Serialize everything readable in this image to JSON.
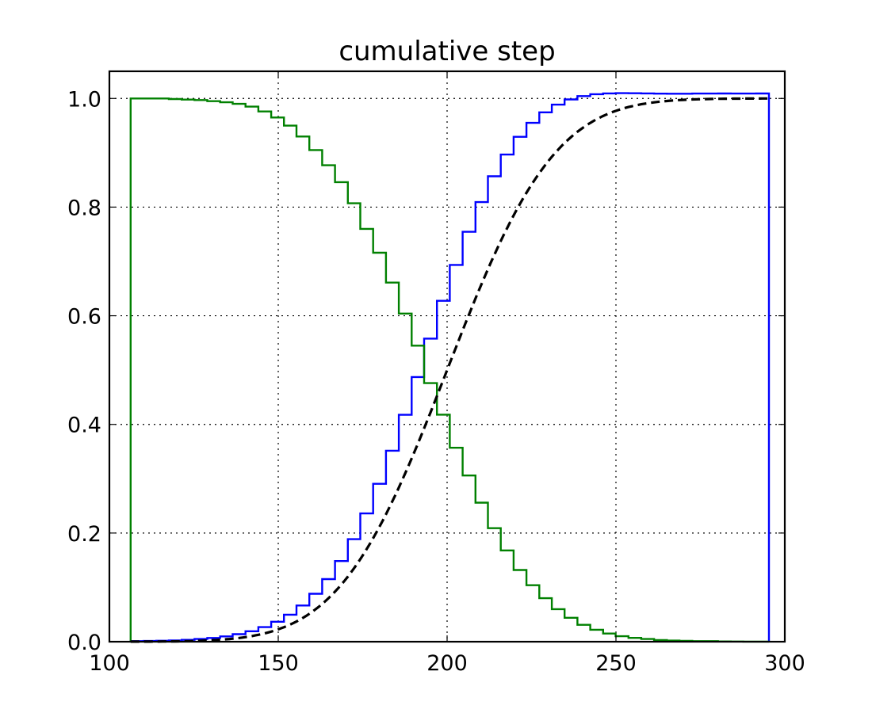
{
  "chart_data": {
    "type": "line",
    "title": "cumulative step",
    "xlabel": "",
    "ylabel": "",
    "xlim": [
      100,
      300
    ],
    "ylim": [
      0.0,
      1.05
    ],
    "xticks": [
      100,
      150,
      200,
      250,
      300
    ],
    "xtick_labels": [
      "100",
      "150",
      "200",
      "250",
      "300"
    ],
    "yticks": [
      0.0,
      0.2,
      0.4,
      0.6,
      0.8,
      1.0
    ],
    "ytick_labels": [
      "0.0",
      "0.2",
      "0.4",
      "0.6",
      "0.8",
      "1.0"
    ],
    "grid": true,
    "legend": "none",
    "series": [
      {
        "style": "step",
        "color": "#0000ff",
        "bin_edges": [
          106.3,
          110.1,
          113.9,
          117.6,
          121.4,
          125.2,
          129.0,
          132.8,
          136.5,
          140.3,
          144.1,
          147.9,
          151.7,
          155.4,
          159.2,
          163.0,
          166.8,
          170.6,
          174.3,
          178.1,
          181.9,
          185.7,
          189.5,
          193.2,
          197.0,
          200.8,
          204.6,
          208.4,
          212.1,
          215.9,
          219.7,
          223.5,
          227.3,
          231.0,
          234.8,
          238.6,
          242.4,
          246.2,
          249.9,
          253.7,
          257.5,
          261.3,
          265.1,
          268.8,
          272.6,
          276.4,
          280.2,
          284.0,
          287.7,
          291.5,
          295.3
        ],
        "values": [
          0.001,
          0.0013,
          0.0017,
          0.0024,
          0.0034,
          0.0049,
          0.0069,
          0.0098,
          0.0138,
          0.0193,
          0.0268,
          0.0367,
          0.0497,
          0.0667,
          0.0882,
          0.1152,
          0.1485,
          0.1887,
          0.2361,
          0.2906,
          0.3516,
          0.4177,
          0.4873,
          0.558,
          0.6275,
          0.6936,
          0.7546,
          0.8093,
          0.8568,
          0.8968,
          0.9294,
          0.955,
          0.9745,
          0.9886,
          0.9982,
          1.0043,
          1.0078,
          1.0093,
          1.0097,
          1.0096,
          1.0093,
          1.0089,
          1.0087,
          1.0088,
          1.009,
          1.009,
          1.0091,
          1.009,
          1.009,
          1.0091
        ]
      },
      {
        "style": "step",
        "color": "#008000",
        "bin_edges": [
          106.3,
          110.1,
          113.9,
          117.6,
          121.4,
          125.2,
          129.0,
          132.8,
          136.5,
          140.3,
          144.1,
          147.9,
          151.7,
          155.4,
          159.2,
          163.0,
          166.8,
          170.6,
          174.3,
          178.1,
          181.9,
          185.7,
          189.5,
          193.2,
          197.0,
          200.8,
          204.6,
          208.4,
          212.1,
          215.9,
          219.7,
          223.5,
          227.3,
          231.0,
          234.8,
          238.6,
          242.4,
          246.2,
          249.9,
          253.7,
          257.5,
          261.3,
          265.1,
          268.8,
          272.6,
          276.4,
          280.2,
          284.0,
          287.7,
          291.5,
          295.3
        ],
        "values": [
          1.0,
          1.0,
          1.0,
          0.999,
          0.998,
          0.997,
          0.995,
          0.993,
          0.99,
          0.985,
          0.976,
          0.965,
          0.95,
          0.93,
          0.905,
          0.877,
          0.846,
          0.807,
          0.76,
          0.716,
          0.661,
          0.604,
          0.545,
          0.476,
          0.418,
          0.357,
          0.306,
          0.256,
          0.209,
          0.168,
          0.132,
          0.104,
          0.08,
          0.06,
          0.044,
          0.031,
          0.022,
          0.015,
          0.01,
          0.007,
          0.005,
          0.003,
          0.002,
          0.0015,
          0.001,
          0.001,
          0.0005,
          0.0003,
          0.0002,
          0.0001
        ]
      },
      {
        "style": "dashed",
        "color": "#000000",
        "distribution": "normal",
        "mu": 200,
        "sigma": 25
      }
    ]
  }
}
